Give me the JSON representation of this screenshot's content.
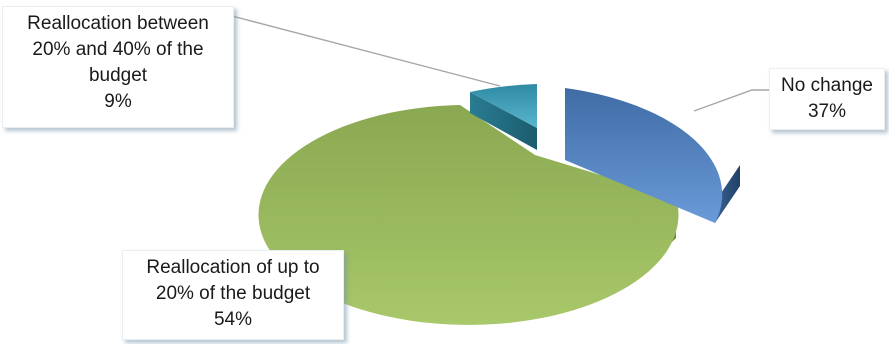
{
  "chart_data": {
    "type": "pie",
    "variant": "3d-exploded",
    "legend": "none",
    "slices": [
      {
        "label": "No change",
        "value": 37,
        "value_label": "37%",
        "color": "#4f81bd"
      },
      {
        "label": "Reallocation of up to 20% of the budget",
        "value": 54,
        "value_label": "54%",
        "color": "#9bbb59"
      },
      {
        "label": "Reallocation between 20% and 40% of the budget",
        "value": 9,
        "value_label": "9%",
        "color": "#4bacc6"
      }
    ]
  },
  "labels": {
    "no_change": {
      "line1": "No change",
      "line2": "37%"
    },
    "up_to_20": {
      "line1": "Reallocation of up to",
      "line2": "20% of the budget",
      "line3": "54%"
    },
    "between": {
      "line1": "Reallocation between",
      "line2": "20% and 40% of the",
      "line3": "budget",
      "line4": "9%"
    }
  }
}
